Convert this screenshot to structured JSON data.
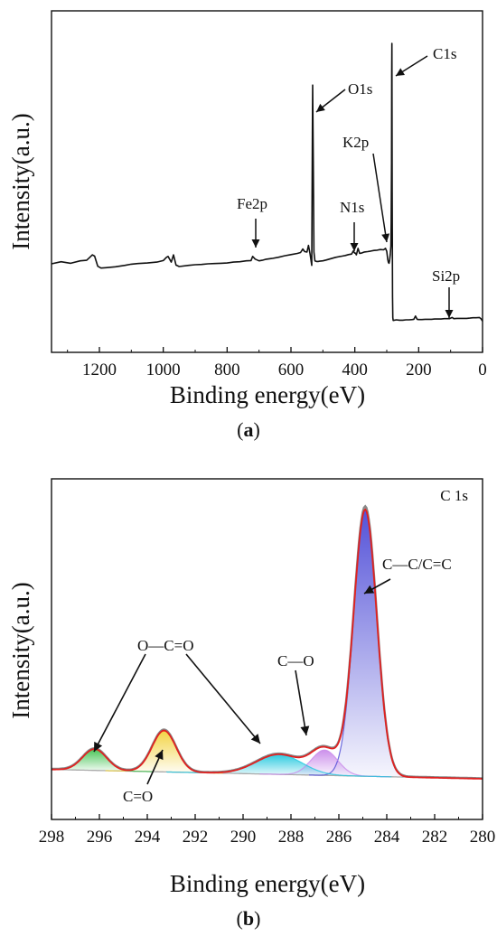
{
  "chart_data": [
    {
      "type": "line",
      "panel_label": "a",
      "xlabel": "Binding energy(eV)",
      "ylabel": "Intensity(a.u.)",
      "xlim": [
        1350,
        0
      ],
      "x_ticks": [
        1200,
        1000,
        800,
        600,
        400,
        200,
        0
      ],
      "y_ticks_shown": false,
      "grid": false,
      "series": [
        {
          "x": [
            1350,
            1320,
            1290,
            1260,
            1240,
            1230,
            1222,
            1215,
            1205,
            1195,
            1180,
            1150,
            1120,
            1100,
            1080,
            1050,
            1020,
            1000,
            990,
            985,
            978,
            975,
            968,
            960,
            950,
            920,
            900,
            880,
            860,
            840,
            820,
            800,
            780,
            760,
            740,
            725,
            720,
            712,
            700,
            690,
            680,
            660,
            640,
            620,
            600,
            580,
            570,
            563,
            557,
            550,
            545,
            540,
            535,
            533,
            532,
            530,
            528,
            525,
            520,
            515,
            510,
            500,
            490,
            480,
            470,
            460,
            450,
            440,
            430,
            420,
            410,
            405,
            400,
            398,
            395,
            390,
            385,
            380,
            370,
            360,
            350,
            340,
            330,
            320,
            310,
            304,
            300,
            297,
            295,
            293,
            291,
            289,
            287,
            286,
            285,
            284.5,
            284,
            283,
            282,
            281,
            280,
            270,
            260,
            250,
            240,
            230,
            220,
            215,
            210,
            205,
            200,
            190,
            180,
            170,
            160,
            150,
            140,
            130,
            120,
            110,
            103,
            100,
            95,
            90,
            80,
            70,
            60,
            50,
            40,
            30,
            20,
            10,
            5,
            0
          ],
          "y": [
            260,
            267,
            262,
            270,
            272,
            282,
            290,
            286,
            252,
            246,
            247,
            250,
            255,
            259,
            261,
            263,
            266,
            271,
            282,
            285,
            272,
            266,
            290,
            256,
            251,
            255,
            257,
            258,
            260,
            261,
            262,
            263,
            266,
            267,
            270,
            271,
            285,
            276,
            270,
            272,
            275,
            278,
            282,
            287,
            291,
            295,
            298,
            310,
            301,
            300,
            322,
            292,
            255,
            700,
            860,
            600,
            300,
            270,
            268,
            268,
            269,
            270,
            273,
            276,
            279,
            282,
            284,
            286,
            288,
            291,
            293,
            303,
            296,
            296,
            290,
            312,
            295,
            296,
            300,
            301,
            303,
            305,
            306,
            308,
            307,
            312,
            302,
            275,
            265,
            262,
            272,
            292,
            320,
            400,
            600,
            900,
            1000,
            500,
            150,
            80,
            70,
            72,
            71,
            71,
            72,
            72,
            73,
            74,
            85,
            74,
            73,
            73,
            74,
            74,
            74,
            75,
            75,
            75,
            76,
            76,
            76,
            78,
            80,
            76,
            77,
            77,
            77,
            77,
            78,
            79,
            79,
            80,
            76,
            68
          ]
        }
      ],
      "annotations": [
        {
          "text": "C1s",
          "x": 285
        },
        {
          "text": "O1s",
          "x": 532
        },
        {
          "text": "K2p",
          "x": 293
        },
        {
          "text": "Fe2p",
          "x": 712
        },
        {
          "text": "N1s",
          "x": 400
        },
        {
          "text": "Si2p",
          "x": 103
        }
      ]
    },
    {
      "type": "area",
      "panel_label": "b",
      "xlabel": "Binding energy(eV)",
      "ylabel": "Intensity(a.u.)",
      "xlim": [
        298,
        280
      ],
      "x_ticks": [
        298,
        296,
        294,
        292,
        290,
        288,
        286,
        284,
        282,
        280
      ],
      "y_ticks_shown": false,
      "grid": false,
      "inset_label": "C 1s",
      "peaks": [
        {
          "label": "C—C/C=C",
          "center": 284.9,
          "height": 100,
          "width": 0.48,
          "color": "#4b49d6"
        },
        {
          "label": "C—O",
          "center": 286.6,
          "height": 9.5,
          "width": 0.55,
          "color": "#c98bea"
        },
        {
          "label": "O—C=O",
          "center": 288.5,
          "height": 7.5,
          "width": 0.95,
          "color": "#20c7de"
        },
        {
          "label": "C=O",
          "center": 293.3,
          "height": 15.5,
          "width": 0.5,
          "color": "#f2d13a"
        },
        {
          "label": "O—C=O",
          "center": 296.2,
          "height": 8,
          "width": 0.5,
          "color": "#3fc24e"
        }
      ],
      "background": {
        "left_value": 3.5,
        "right_value": 0
      },
      "envelope_color": "#e02020",
      "raw_color": "#888888",
      "annotations": [
        {
          "text": "C 1s"
        },
        {
          "text": "C—C/C=C"
        },
        {
          "text": "C—O"
        },
        {
          "text": "O—C=O"
        },
        {
          "text": "C=O"
        }
      ]
    }
  ]
}
